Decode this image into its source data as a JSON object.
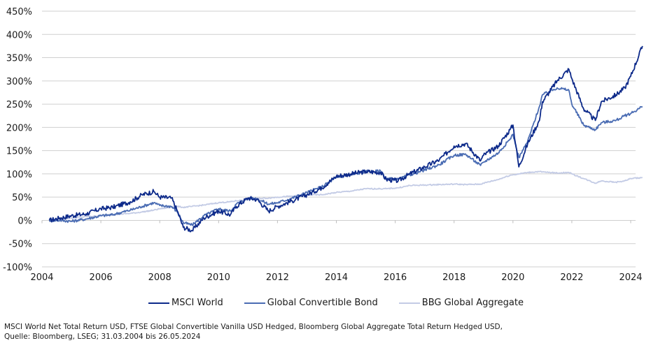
{
  "chart_data": {
    "type": "line",
    "title": "",
    "xlabel": "",
    "ylabel": "",
    "xlim": [
      2004,
      2024.5
    ],
    "ylim": [
      -100,
      450
    ],
    "x_ticks": [
      "2004",
      "2006",
      "2008",
      "2010",
      "2012",
      "2014",
      "2016",
      "2018",
      "2020",
      "2022",
      "2024"
    ],
    "y_ticks": [
      "450%",
      "400%",
      "350%",
      "300%",
      "250%",
      "200%",
      "150%",
      "100%",
      "50%",
      "0%",
      "-50%",
      "-100%"
    ],
    "grid": true,
    "legend_position": "bottom-center",
    "x": [
      2004.25,
      2004.6,
      2005.0,
      2005.5,
      2006.0,
      2006.4,
      2006.5,
      2007.0,
      2007.4,
      2007.8,
      2008.0,
      2008.4,
      2008.6,
      2008.8,
      2009.1,
      2009.5,
      2010.0,
      2010.4,
      2010.6,
      2011.0,
      2011.3,
      2011.7,
      2012.0,
      2012.5,
      2013.0,
      2013.5,
      2014.0,
      2014.5,
      2015.0,
      2015.5,
      2015.7,
      2016.1,
      2016.5,
      2017.0,
      2017.5,
      2018.0,
      2018.4,
      2018.9,
      2019.0,
      2019.5,
      2019.9,
      2020.0,
      2020.2,
      2020.5,
      2020.9,
      2021.0,
      2021.5,
      2021.9,
      2022.0,
      2022.4,
      2022.8,
      2023.0,
      2023.5,
      2023.8,
      2024.0,
      2024.4
    ],
    "series": [
      {
        "name": "MSCI World",
        "color": "#0d2a8a",
        "values": [
          0,
          5,
          10,
          14,
          25,
          28,
          30,
          40,
          55,
          62,
          50,
          48,
          20,
          -15,
          -22,
          5,
          20,
          12,
          30,
          48,
          45,
          20,
          30,
          42,
          55,
          70,
          95,
          100,
          105,
          103,
          88,
          85,
          100,
          115,
          130,
          160,
          165,
          128,
          140,
          160,
          195,
          205,
          115,
          165,
          215,
          255,
          300,
          325,
          305,
          240,
          215,
          255,
          270,
          285,
          310,
          375
        ]
      },
      {
        "name": "Global Convertible Bond",
        "color": "#4a6cb3",
        "values": [
          0,
          0,
          -2,
          3,
          10,
          12,
          14,
          22,
          30,
          38,
          32,
          30,
          18,
          -5,
          -10,
          10,
          25,
          20,
          35,
          48,
          47,
          35,
          38,
          48,
          60,
          72,
          92,
          98,
          105,
          106,
          90,
          88,
          98,
          108,
          120,
          140,
          142,
          118,
          125,
          145,
          175,
          185,
          135,
          170,
          245,
          270,
          285,
          280,
          250,
          205,
          195,
          210,
          215,
          225,
          230,
          245
        ]
      },
      {
        "name": "BBG Global Aggregate",
        "color": "#c3cbe5",
        "values": [
          0,
          2,
          5,
          8,
          10,
          12,
          13,
          15,
          18,
          22,
          25,
          28,
          30,
          28,
          30,
          33,
          38,
          40,
          42,
          45,
          47,
          48,
          50,
          52,
          55,
          55,
          60,
          63,
          68,
          68,
          68,
          70,
          75,
          76,
          77,
          78,
          77,
          78,
          80,
          88,
          97,
          98,
          100,
          103,
          105,
          104,
          102,
          103,
          100,
          90,
          80,
          85,
          82,
          85,
          90,
          92
        ]
      }
    ]
  },
  "legend": {
    "items": [
      {
        "label": "MSCI World",
        "color": "#0d2a8a"
      },
      {
        "label": "Global Convertible Bond",
        "color": "#4a6cb3"
      },
      {
        "label": "BBG Global Aggregate",
        "color": "#c3cbe5"
      }
    ]
  },
  "footnote": {
    "line1": "MSCI World Net Total Return USD, FTSE Global Convertible Vanilla USD Hedged, Bloomberg Global Aggregate Total Return Hedged USD,",
    "line2": "Quelle: Bloomberg, LSEG; 31.03.2004 bis 26.05.2024"
  }
}
